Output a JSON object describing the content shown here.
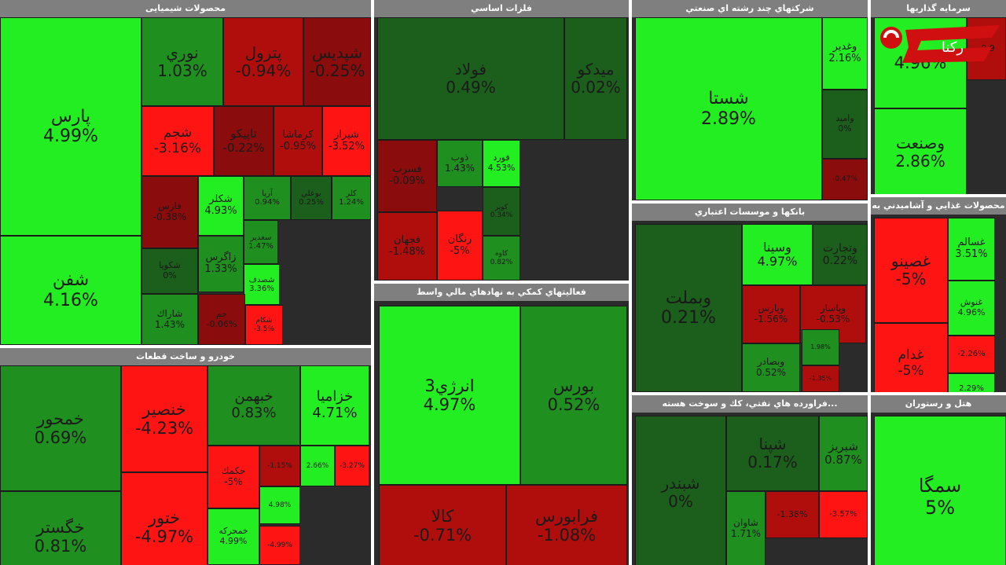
{
  "colors": {
    "strong_green": "#22ee22",
    "green": "#1f8f1f",
    "dark_green": "#1c5e1c",
    "red": "#ff1414",
    "dark_red": "#b00d0d",
    "deep_red": "#8a0c0c",
    "header_bg": "#7f7f7f"
  },
  "logo": {
    "icon": "rokna-logo",
    "text": "رکنا"
  },
  "chart_data": [
    {
      "type": "treemap",
      "title": "محصولات شیمیایی",
      "tiles": [
        {
          "name": "پارس",
          "value": "4.99%"
        },
        {
          "name": "شفن",
          "value": "4.16%"
        },
        {
          "name": "نوري",
          "value": "1.03%"
        },
        {
          "name": "پترول",
          "value": "-0.94%"
        },
        {
          "name": "شپديس",
          "value": "-0.25%"
        },
        {
          "name": "شجم",
          "value": "-3.16%"
        },
        {
          "name": "تاپيكو",
          "value": "-0.22%"
        },
        {
          "name": "كرماشا",
          "value": "-0.95%"
        },
        {
          "name": "شيراز",
          "value": "-3.52%"
        },
        {
          "name": "فارس",
          "value": "-0.38%"
        },
        {
          "name": "شكلر",
          "value": "4.93%"
        },
        {
          "name": "آريا",
          "value": "0.94%"
        },
        {
          "name": "بوعلي",
          "value": "0.25%"
        },
        {
          "name": "كلر",
          "value": "1.24%"
        },
        {
          "name": "شكويا",
          "value": "0%"
        },
        {
          "name": "زاگرس",
          "value": "1.33%"
        },
        {
          "name": "سعدير",
          "value": "1.47%"
        },
        {
          "name": "شصدف",
          "value": "3.36%"
        },
        {
          "name": "شاراك",
          "value": "1.43%"
        },
        {
          "name": "جم",
          "value": "-0.06%"
        },
        {
          "name": "شكام",
          "value": "-3.5%"
        }
      ]
    },
    {
      "type": "treemap",
      "title": "فلزات اساسي",
      "tiles": [
        {
          "name": "فولاد",
          "value": "0.49%"
        },
        {
          "name": "ميدكو",
          "value": "0.02%"
        },
        {
          "name": "فسرب",
          "value": "-0.09%"
        },
        {
          "name": "ذوب",
          "value": "1.43%"
        },
        {
          "name": "فورد",
          "value": "4.53%"
        },
        {
          "name": "كوير",
          "value": "0.34%"
        },
        {
          "name": "فجهان",
          "value": "-1.48%"
        },
        {
          "name": "رنگان",
          "value": "-5%"
        },
        {
          "name": "كاوه",
          "value": "0.82%"
        }
      ]
    },
    {
      "type": "treemap",
      "title": "شركتهاي چند رشته اي صنعتي",
      "tiles": [
        {
          "name": "شستا",
          "value": "2.89%"
        },
        {
          "name": "وغدير",
          "value": "2.16%"
        },
        {
          "name": "واميد",
          "value": "0%"
        },
        {
          "name": "",
          "value": "-0.47%"
        }
      ]
    },
    {
      "type": "treemap",
      "title": "سرمايه گذاريها",
      "tiles": [
        {
          "name": "",
          "value": "4.96%"
        },
        {
          "name": "وصنعت",
          "value": "2.86%"
        },
        {
          "name": "",
          "value": "-0.9"
        }
      ]
    },
    {
      "type": "treemap",
      "title": "بانكها و موسسات اعتباري",
      "tiles": [
        {
          "name": "وبملت",
          "value": "0.21%"
        },
        {
          "name": "وسينا",
          "value": "4.97%"
        },
        {
          "name": "وتجارت",
          "value": "0.22%"
        },
        {
          "name": "وپارس",
          "value": "-1.56%"
        },
        {
          "name": "وبصادر",
          "value": "0.52%"
        },
        {
          "name": "وپاسار",
          "value": "-0.53%"
        },
        {
          "name": "",
          "value": "1.98%"
        },
        {
          "name": "",
          "value": "-1.35%"
        }
      ]
    },
    {
      "type": "treemap",
      "title": "محصولات غذايي و آشاميدني به",
      "tiles": [
        {
          "name": "غصينو",
          "value": "-5%"
        },
        {
          "name": "غسالم",
          "value": "3.51%"
        },
        {
          "name": "غنوش",
          "value": "4.96%"
        },
        {
          "name": "غدام",
          "value": "-5%"
        },
        {
          "name": "",
          "value": "-2.26%"
        },
        {
          "name": "",
          "value": "2.29%"
        }
      ]
    },
    {
      "type": "treemap",
      "title": "خودرو و ساخت قطعات",
      "tiles": [
        {
          "name": "خمحور",
          "value": "0.69%"
        },
        {
          "name": "خگستر",
          "value": "0.81%"
        },
        {
          "name": "خنصير",
          "value": "-4.23%"
        },
        {
          "name": "ختور",
          "value": "-4.97%"
        },
        {
          "name": "خبهمن",
          "value": "0.83%"
        },
        {
          "name": "خزاميا",
          "value": "4.71%"
        },
        {
          "name": "حكمك",
          "value": "-5%"
        },
        {
          "name": "",
          "value": "-1.15%"
        },
        {
          "name": "",
          "value": "2.66%"
        },
        {
          "name": "",
          "value": "-3.27%"
        },
        {
          "name": "",
          "value": "4.98%"
        },
        {
          "name": "خمحركه",
          "value": "4.99%"
        },
        {
          "name": "",
          "value": "-4.99%"
        }
      ]
    },
    {
      "type": "treemap",
      "title": "فعاليتهاي كمكي به نهادهاي مالي واسط",
      "tiles": [
        {
          "name": "انرژي3",
          "value": "4.97%"
        },
        {
          "name": "بورس",
          "value": "0.52%"
        },
        {
          "name": "كالا",
          "value": "-0.71%"
        },
        {
          "name": "فرابورس",
          "value": "-1.08%"
        }
      ]
    },
    {
      "type": "treemap",
      "title": "...فراورده هاي نفتي، كك و سوخت هسته",
      "tiles": [
        {
          "name": "شبندر",
          "value": "0%"
        },
        {
          "name": "شپنا",
          "value": "0.17%"
        },
        {
          "name": "شبريز",
          "value": "0.87%"
        },
        {
          "name": "شاوان",
          "value": "1.71%"
        },
        {
          "name": "",
          "value": "-1.38%"
        },
        {
          "name": "",
          "value": "-3.57%"
        }
      ]
    },
    {
      "type": "treemap",
      "title": "هتل و رستوران",
      "tiles": [
        {
          "name": "سمگا",
          "value": "5%"
        }
      ]
    }
  ]
}
